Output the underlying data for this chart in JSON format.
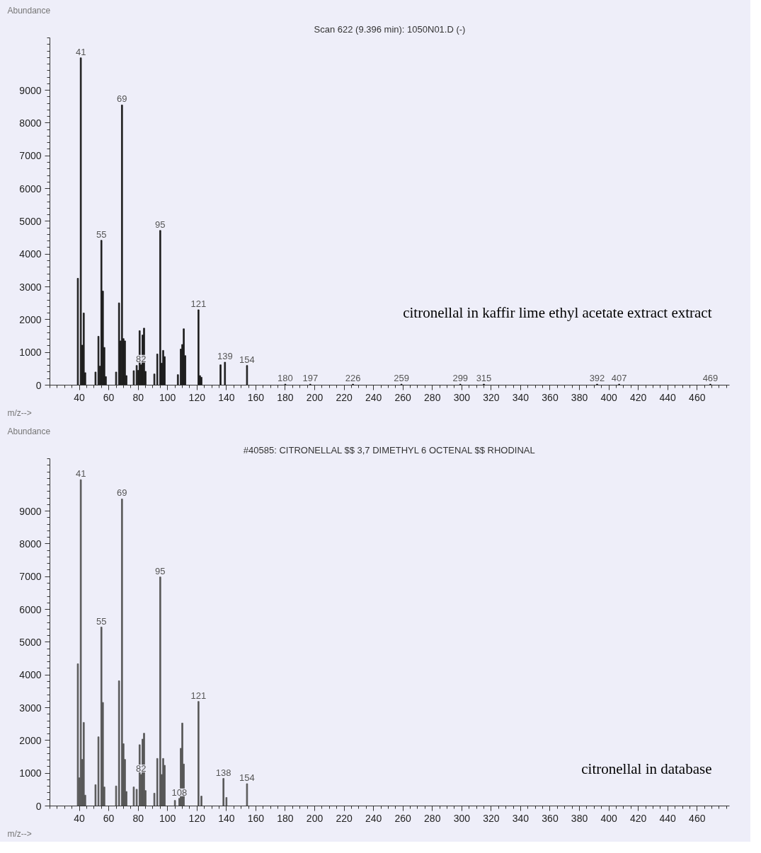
{
  "chart_data": [
    {
      "type": "bar",
      "title": "Scan 622 (9.396 min): 1050N01.D (-)",
      "xlabel": "m/z-->",
      "ylabel": "Abundance",
      "x": [
        39,
        41,
        42,
        43,
        44,
        51,
        53,
        54,
        55,
        56,
        57,
        58,
        65,
        67,
        68,
        69,
        70,
        71,
        72,
        77,
        79,
        80,
        81,
        82,
        83,
        84,
        85,
        91,
        93,
        95,
        96,
        97,
        98,
        107,
        109,
        110,
        111,
        112,
        121,
        122,
        123,
        136,
        139,
        154,
        180,
        197,
        226,
        259,
        299,
        315,
        392,
        407,
        469
      ],
      "values": [
        3260,
        9990,
        1220,
        2200,
        380,
        400,
        1490,
        580,
        4420,
        2870,
        1150,
        260,
        400,
        2510,
        1350,
        8550,
        1420,
        1350,
        290,
        440,
        600,
        450,
        1660,
        620,
        1530,
        1740,
        420,
        340,
        950,
        4720,
        670,
        1060,
        870,
        320,
        1100,
        1240,
        1720,
        900,
        2300,
        290,
        240,
        620,
        700,
        600,
        30,
        30,
        30,
        30,
        30,
        30,
        30,
        30,
        30
      ],
      "color": "#1a1a1a",
      "xlim": [
        20,
        482
      ],
      "xticks": [
        40,
        60,
        80,
        100,
        120,
        140,
        160,
        180,
        200,
        220,
        240,
        260,
        280,
        300,
        320,
        340,
        360,
        380,
        400,
        420,
        440,
        460
      ],
      "ylim": [
        0,
        10600
      ],
      "yticks": [
        0,
        1000,
        2000,
        3000,
        4000,
        5000,
        6000,
        7000,
        8000,
        9000
      ],
      "grid": false,
      "annotations": [
        {
          "text": "41",
          "x": 41,
          "y": 9990
        },
        {
          "text": "55",
          "x": 55,
          "y": 4420
        },
        {
          "text": "69",
          "x": 69,
          "y": 8550
        },
        {
          "text": "82",
          "x": 82,
          "y": 620
        },
        {
          "text": "95",
          "x": 95,
          "y": 4720
        },
        {
          "text": "121",
          "x": 121,
          "y": 2300
        },
        {
          "text": "139",
          "x": 139,
          "y": 700
        },
        {
          "text": "154",
          "x": 154,
          "y": 600
        },
        {
          "text": "180",
          "x": 180,
          "y": 30
        },
        {
          "text": "197",
          "x": 197,
          "y": 30
        },
        {
          "text": "226",
          "x": 226,
          "y": 30
        },
        {
          "text": "259",
          "x": 259,
          "y": 30
        },
        {
          "text": "299",
          "x": 299,
          "y": 30
        },
        {
          "text": "315",
          "x": 315,
          "y": 30
        },
        {
          "text": "392",
          "x": 392,
          "y": 30
        },
        {
          "text": "407",
          "x": 407,
          "y": 30
        },
        {
          "text": "469",
          "x": 469,
          "y": 30
        },
        "citronellal in kaffir lime ethyl acetate extract extract"
      ]
    },
    {
      "type": "bar",
      "title": "#40585: CITRONELLAL $$ 3,7 DIMETHYL 6 OCTENAL $$ RHODINAL",
      "xlabel": "m/z-->",
      "ylabel": "Abundance",
      "x": [
        39,
        40,
        41,
        42,
        43,
        44,
        51,
        53,
        55,
        56,
        57,
        65,
        67,
        69,
        70,
        71,
        72,
        77,
        79,
        81,
        82,
        83,
        84,
        85,
        91,
        93,
        95,
        96,
        97,
        98,
        105,
        108,
        109,
        110,
        111,
        121,
        123,
        138,
        140,
        154
      ],
      "values": [
        4340,
        860,
        9960,
        1420,
        2550,
        330,
        650,
        2110,
        5460,
        3160,
        580,
        610,
        3820,
        9370,
        1900,
        1420,
        440,
        580,
        510,
        1870,
        960,
        2040,
        2220,
        470,
        390,
        1450,
        6990,
        960,
        1450,
        1240,
        170,
        230,
        1760,
        2530,
        1280,
        3190,
        300,
        840,
        260,
        680
      ],
      "color": "#555555",
      "xlim": [
        20,
        482
      ],
      "xticks": [
        40,
        60,
        80,
        100,
        120,
        140,
        160,
        180,
        200,
        220,
        240,
        260,
        280,
        300,
        320,
        340,
        360,
        380,
        400,
        420,
        440,
        460
      ],
      "ylim": [
        0,
        10600
      ],
      "yticks": [
        0,
        1000,
        2000,
        3000,
        4000,
        5000,
        6000,
        7000,
        8000,
        9000
      ],
      "grid": false,
      "annotations": [
        {
          "text": "41",
          "x": 41,
          "y": 9960
        },
        {
          "text": "55",
          "x": 55,
          "y": 5460
        },
        {
          "text": "69",
          "x": 69,
          "y": 9370
        },
        {
          "text": "82",
          "x": 82,
          "y": 960
        },
        {
          "text": "95",
          "x": 95,
          "y": 6990
        },
        {
          "text": "108",
          "x": 108,
          "y": 230
        },
        {
          "text": "121",
          "x": 121,
          "y": 3190
        },
        {
          "text": "138",
          "x": 138,
          "y": 840
        },
        {
          "text": "154",
          "x": 154,
          "y": 680
        },
        "citronellal in database"
      ]
    }
  ]
}
